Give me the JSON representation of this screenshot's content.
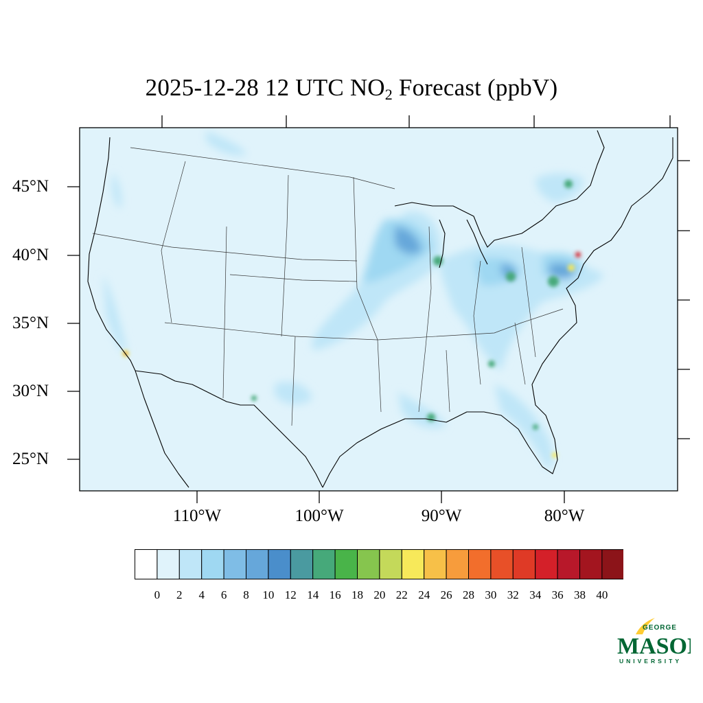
{
  "title": {
    "prefix": "2025-12-28 12 UTC NO",
    "subscript": "2",
    "suffix": " Forecast (ppbV)"
  },
  "axes": {
    "lat_labels": [
      "45°N",
      "40°N",
      "35°N",
      "30°N",
      "25°N"
    ],
    "lon_labels": [
      "110°W",
      "100°W",
      "90°W",
      "80°W"
    ]
  },
  "colorbar": {
    "ticks": [
      "0",
      "2",
      "4",
      "6",
      "8",
      "10",
      "12",
      "14",
      "16",
      "18",
      "20",
      "22",
      "24",
      "26",
      "28",
      "30",
      "32",
      "34",
      "36",
      "38",
      "40"
    ],
    "colors": [
      "#ffffff",
      "#e0f3fb",
      "#bfe6f8",
      "#9fd8f2",
      "#7fbde6",
      "#66a7da",
      "#4a8ecb",
      "#4a9aa0",
      "#46a97a",
      "#49b449",
      "#86c54e",
      "#c4d95a",
      "#f7e95a",
      "#f7c048",
      "#f79c3c",
      "#f26e2c",
      "#e85028",
      "#df3a26",
      "#d42029",
      "#b8182a",
      "#a3151f",
      "#8c1419"
    ]
  },
  "map": {
    "background": "#e0f3fb",
    "hotspot_colors": {
      "light": "#bfe6f8",
      "mid": "#9fd8f2",
      "deep": "#66a7da",
      "dark": "#4a8ecb",
      "green": "#46a97a",
      "yellow": "#f7e95a",
      "red": "#d42029"
    }
  },
  "logo": {
    "line1": "GEORGE",
    "line2": "MASON",
    "line3": "UNIVERSITY",
    "green": "#006633",
    "gold": "#ffcc33"
  }
}
